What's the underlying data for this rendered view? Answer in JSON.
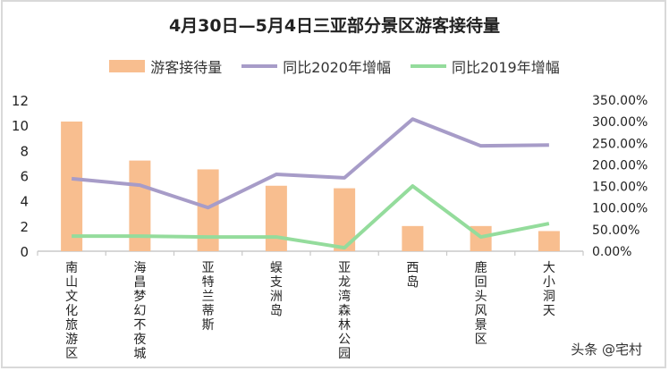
{
  "chart_data": {
    "type": "bar+line",
    "title": "4月30日—5月4日三亚部分景区游客接待量",
    "categories": [
      "南山文化旅游区",
      "海昌梦幻不夜城",
      "亚特兰蒂斯",
      "蜈支洲岛",
      "亚龙湾森林公园",
      "西岛",
      "鹿回头风景区",
      "大小洞天"
    ],
    "series": [
      {
        "name": "游客接待量",
        "type": "bar",
        "axis": "left",
        "color": "#f8be8f",
        "values": [
          10.3,
          7.2,
          6.5,
          5.2,
          5.0,
          2.0,
          2.0,
          1.6
        ]
      },
      {
        "name": "同比2020年增幅",
        "type": "line",
        "axis": "right",
        "color": "#a79cc8",
        "values": [
          168,
          153,
          101,
          178,
          170,
          306,
          244,
          246
        ]
      },
      {
        "name": "同比2019年增幅",
        "type": "line",
        "axis": "right",
        "color": "#94dc9c",
        "values": [
          35,
          35,
          33,
          33,
          8,
          151,
          33,
          64
        ]
      }
    ],
    "left_axis": {
      "ylim": [
        0,
        12
      ],
      "ticks": [
        "0",
        "2",
        "4",
        "6",
        "8",
        "10",
        "12"
      ]
    },
    "right_axis": {
      "ylim": [
        0,
        350
      ],
      "ticks": [
        "0.00%",
        "50.00%",
        "100.00%",
        "150.00%",
        "200.00%",
        "250.00%",
        "300.00%",
        "350.00%"
      ]
    },
    "legend_position": "top",
    "grid": false
  },
  "watermark": "头条 @宅村"
}
